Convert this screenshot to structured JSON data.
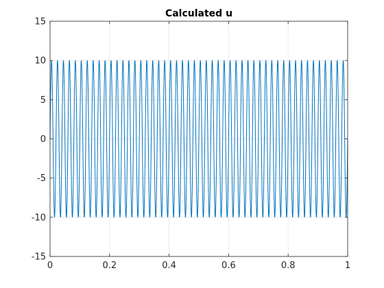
{
  "chart_data": {
    "type": "line",
    "title": "Calculated u",
    "xlabel": "",
    "ylabel": "",
    "xlim": [
      0,
      1
    ],
    "ylim": [
      -15,
      15
    ],
    "x_ticks": [
      0,
      0.2,
      0.4,
      0.6,
      0.8,
      1
    ],
    "x_tick_labels": [
      "0",
      "0.2",
      "0.4",
      "0.6",
      "0.8",
      "1"
    ],
    "y_ticks": [
      -15,
      -10,
      -5,
      0,
      5,
      10,
      15
    ],
    "y_tick_labels": [
      "-15",
      "-10",
      "-5",
      "0",
      "5",
      "10",
      "15"
    ],
    "grid": true,
    "legend": "none",
    "series": [
      {
        "color": "#0072BD",
        "form": "sine",
        "amplitude": 10,
        "frequency_cycles": 50,
        "x_range": [
          0,
          1
        ],
        "offset": 0
      }
    ]
  }
}
